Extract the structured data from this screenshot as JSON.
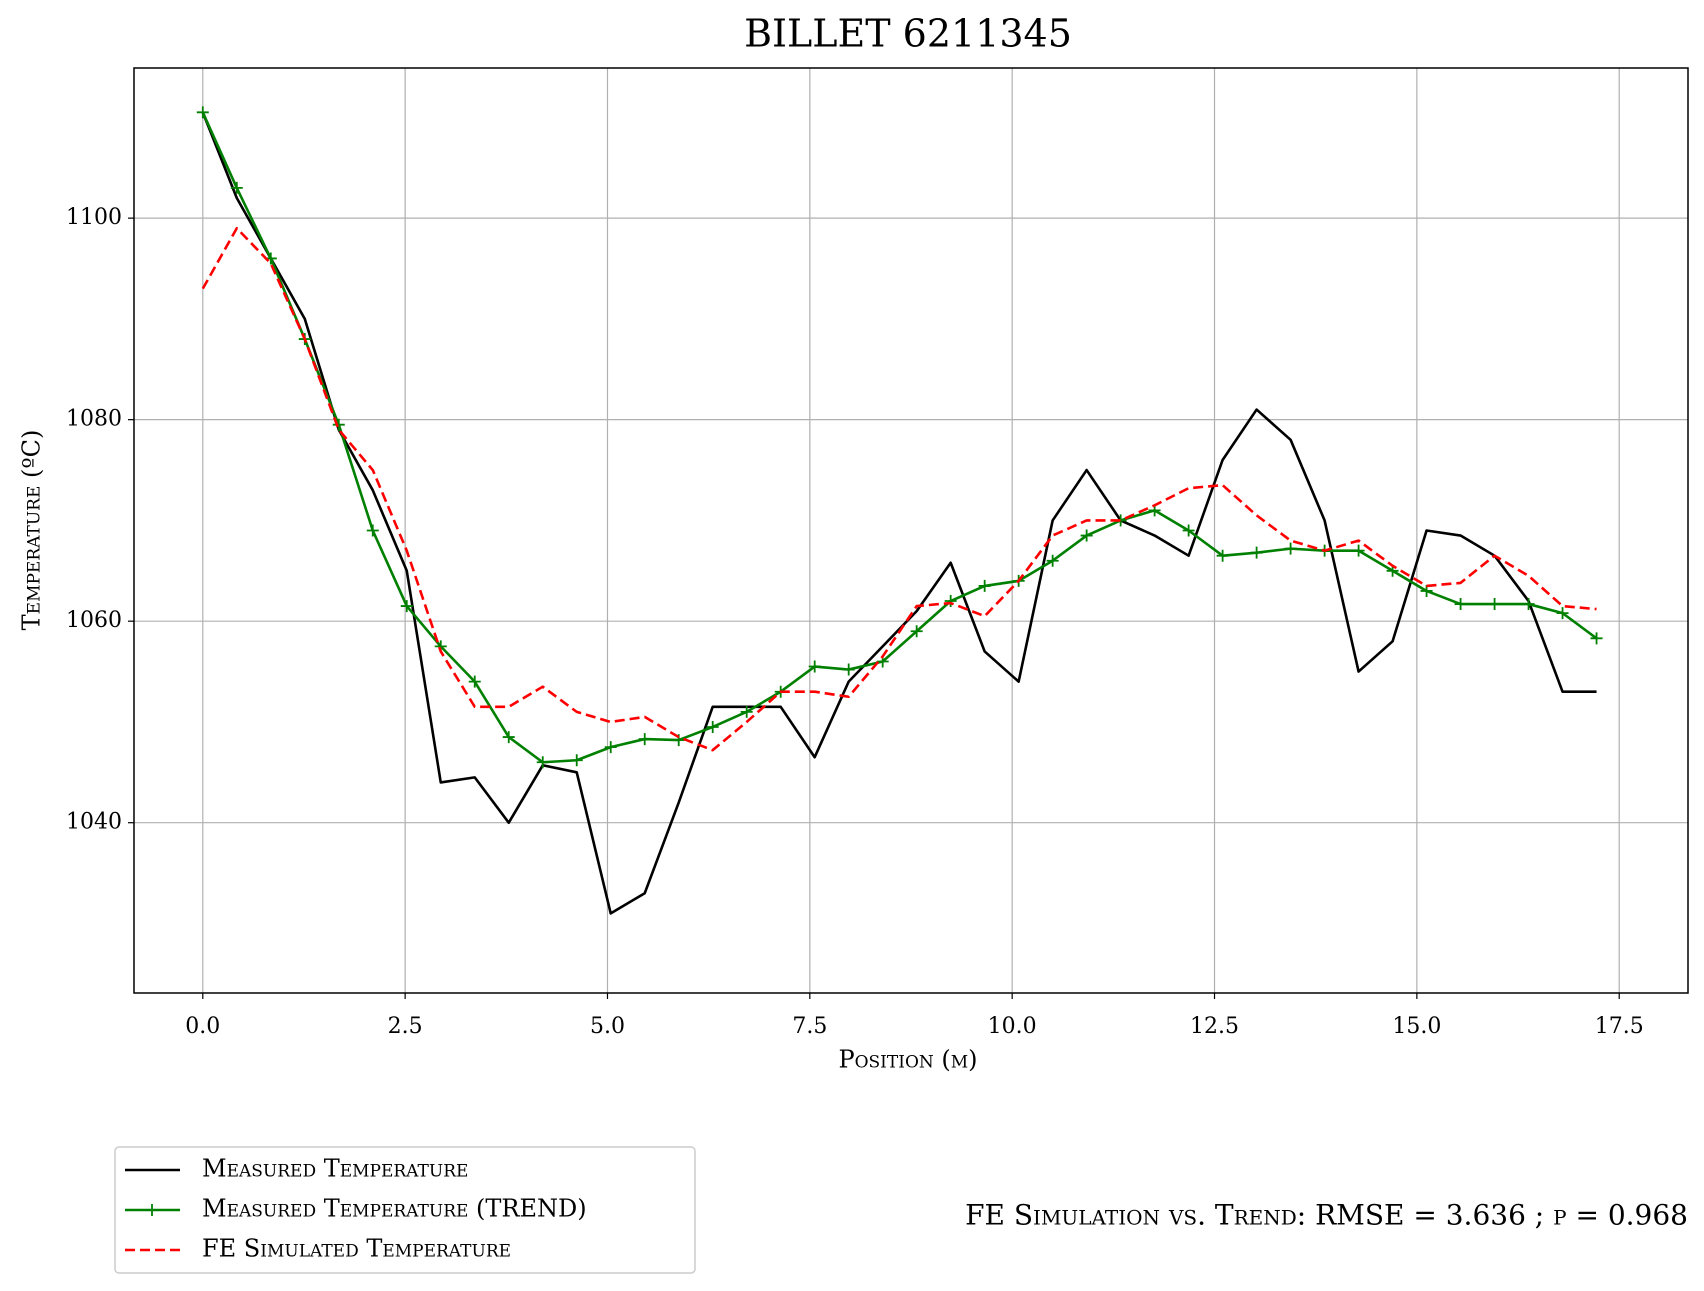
{
  "chart_data": {
    "type": "line",
    "title": "BILLET 6211345",
    "x_label": "Position (m)",
    "y_label": "Temperature (ºC)",
    "annotation": "FE Simulation vs. Trend: RMSE = 3.636 ; ρ = 0.968",
    "x": [
      0,
      0.42,
      0.84,
      1.26,
      1.68,
      2.1,
      2.52,
      2.94,
      3.36,
      3.78,
      4.2,
      4.62,
      5.04,
      5.46,
      5.88,
      6.3,
      6.72,
      7.14,
      7.56,
      7.98,
      8.4,
      8.82,
      9.24,
      9.66,
      10.08,
      10.5,
      10.92,
      11.34,
      11.76,
      12.18,
      12.6,
      13.02,
      13.44,
      13.86,
      14.28,
      14.7,
      15.12,
      15.54,
      15.96,
      16.38,
      16.8,
      17.22
    ],
    "series": [
      {
        "name": "Measured Temperature",
        "color": "#000000",
        "style": "solid",
        "marker": "none",
        "values": [
          1110.5,
          1102,
          1096,
          1090,
          1079,
          1073,
          1065,
          1044,
          1044.5,
          1040,
          1045.7,
          1045,
          1031,
          1033,
          1042,
          1051.5,
          1051.5,
          1051.5,
          1046.5,
          1054,
          1057.5,
          1061,
          1065.8,
          1057,
          1054,
          1070,
          1075,
          1070,
          1068.5,
          1066.5,
          1076,
          1081,
          1078,
          1070,
          1055,
          1058,
          1069,
          1068.5,
          1066.5,
          1062,
          1053,
          1053
        ]
      },
      {
        "name": "Measured Temperature (TREND)",
        "color": "#008000",
        "style": "solid",
        "marker": "plus",
        "values": [
          1110.5,
          1103,
          1096,
          1088,
          1079.5,
          1069,
          1061.5,
          1057.5,
          1054,
          1048.5,
          1046,
          1046.2,
          1047.5,
          1048.3,
          1048.2,
          1049.5,
          1051,
          1053,
          1055.5,
          1055.2,
          1056,
          1059,
          1062,
          1063.5,
          1064,
          1066,
          1068.5,
          1070,
          1071,
          1069,
          1066.5,
          1066.8,
          1067.2,
          1067,
          1067,
          1065,
          1063,
          1061.7,
          1061.7,
          1061.7,
          1060.8,
          1058.3
        ]
      },
      {
        "name": "FE Simulated Temperature",
        "color": "#ff0000",
        "style": "dashed",
        "marker": "none",
        "values": [
          1093,
          1099,
          1095.5,
          1088,
          1079,
          1075,
          1067,
          1057,
          1051.5,
          1051.5,
          1053.5,
          1051,
          1050,
          1050.5,
          1048.5,
          1047.2,
          1050,
          1053,
          1053,
          1052.5,
          1056.5,
          1061.5,
          1061.8,
          1060.5,
          1064,
          1068.5,
          1070,
          1070,
          1071.5,
          1073.2,
          1073.5,
          1070.5,
          1068,
          1067,
          1068,
          1065.5,
          1063.5,
          1063.8,
          1066.5,
          1064.5,
          1061.5,
          1061.2
        ]
      }
    ],
    "xlim": [
      -0.85,
      18.35
    ],
    "ylim": [
      1023.1,
      1114.9
    ],
    "xticks": [
      {
        "value": 0,
        "label": "0.0"
      },
      {
        "value": 2.5,
        "label": "2.5"
      },
      {
        "value": 5,
        "label": "5.0"
      },
      {
        "value": 7.5,
        "label": "7.5"
      },
      {
        "value": 10,
        "label": "10.0"
      },
      {
        "value": 12.5,
        "label": "12.5"
      },
      {
        "value": 15,
        "label": "15.0"
      },
      {
        "value": 17.5,
        "label": "17.5"
      }
    ],
    "yticks": [
      1040,
      1060,
      1080,
      1100
    ],
    "grid": true,
    "legend": "below-left"
  }
}
